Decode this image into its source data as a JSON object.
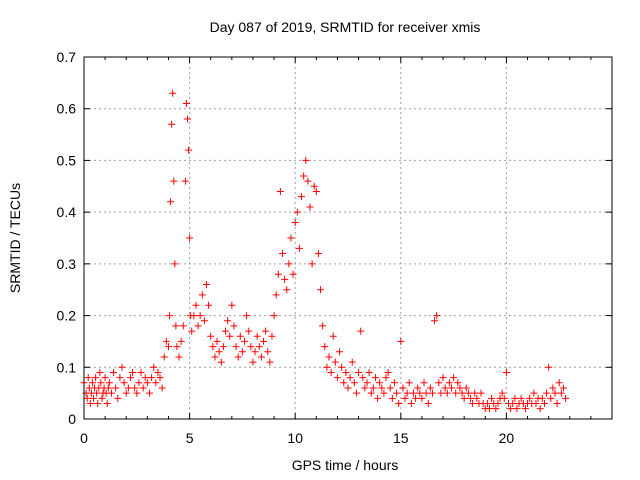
{
  "chart_data": {
    "type": "scatter",
    "title": "Day 087 of 2019, SRMTID for receiver xmis",
    "xlabel": "GPS time / hours",
    "ylabel": "SRMTID / TECUs",
    "xlim": [
      0,
      25
    ],
    "ylim": [
      0,
      0.7
    ],
    "xticks": [
      0,
      5,
      10,
      15,
      20
    ],
    "xtick_labels": [
      "0",
      "5",
      "10",
      "15",
      "20"
    ],
    "yticks": [
      0,
      0.1,
      0.2,
      0.3,
      0.4,
      0.5,
      0.6,
      0.7
    ],
    "ytick_labels": [
      "0",
      "0.1",
      "0.2",
      "0.3",
      "0.4",
      "0.5",
      "0.6",
      "0.7"
    ],
    "grid": true,
    "marker": "+",
    "series_color": "#ff0000",
    "series": [
      {
        "name": "SRMTID",
        "points": [
          [
            0.0,
            0.07
          ],
          [
            0.1,
            0.05
          ],
          [
            0.15,
            0.04
          ],
          [
            0.2,
            0.08
          ],
          [
            0.25,
            0.06
          ],
          [
            0.3,
            0.03
          ],
          [
            0.35,
            0.05
          ],
          [
            0.4,
            0.07
          ],
          [
            0.45,
            0.04
          ],
          [
            0.5,
            0.06
          ],
          [
            0.55,
            0.08
          ],
          [
            0.6,
            0.05
          ],
          [
            0.65,
            0.03
          ],
          [
            0.7,
            0.06
          ],
          [
            0.75,
            0.09
          ],
          [
            0.8,
            0.07
          ],
          [
            0.85,
            0.04
          ],
          [
            0.9,
            0.05
          ],
          [
            0.95,
            0.06
          ],
          [
            1.0,
            0.08
          ],
          [
            1.05,
            0.05
          ],
          [
            1.1,
            0.03
          ],
          [
            1.15,
            0.06
          ],
          [
            1.2,
            0.07
          ],
          [
            1.3,
            0.05
          ],
          [
            1.4,
            0.09
          ],
          [
            1.5,
            0.06
          ],
          [
            1.6,
            0.04
          ],
          [
            1.7,
            0.08
          ],
          [
            1.8,
            0.1
          ],
          [
            1.9,
            0.07
          ],
          [
            2.0,
            0.05
          ],
          [
            2.1,
            0.06
          ],
          [
            2.2,
            0.08
          ],
          [
            2.3,
            0.09
          ],
          [
            2.4,
            0.06
          ],
          [
            2.5,
            0.05
          ],
          [
            2.6,
            0.07
          ],
          [
            2.7,
            0.09
          ],
          [
            2.8,
            0.06
          ],
          [
            2.9,
            0.08
          ],
          [
            3.0,
            0.07
          ],
          [
            3.1,
            0.05
          ],
          [
            3.2,
            0.08
          ],
          [
            3.3,
            0.1
          ],
          [
            3.4,
            0.07
          ],
          [
            3.5,
            0.09
          ],
          [
            3.6,
            0.08
          ],
          [
            3.7,
            0.06
          ],
          [
            3.8,
            0.12
          ],
          [
            3.9,
            0.15
          ],
          [
            4.0,
            0.14
          ],
          [
            4.05,
            0.2
          ],
          [
            4.1,
            0.42
          ],
          [
            4.15,
            0.57
          ],
          [
            4.2,
            0.63
          ],
          [
            4.25,
            0.46
          ],
          [
            4.3,
            0.3
          ],
          [
            4.35,
            0.18
          ],
          [
            4.4,
            0.14
          ],
          [
            4.5,
            0.12
          ],
          [
            4.6,
            0.15
          ],
          [
            4.7,
            0.18
          ],
          [
            4.8,
            0.46
          ],
          [
            4.85,
            0.61
          ],
          [
            4.9,
            0.58
          ],
          [
            4.95,
            0.52
          ],
          [
            5.0,
            0.35
          ],
          [
            5.05,
            0.2
          ],
          [
            5.1,
            0.17
          ],
          [
            5.2,
            0.2
          ],
          [
            5.3,
            0.22
          ],
          [
            5.4,
            0.18
          ],
          [
            5.5,
            0.2
          ],
          [
            5.6,
            0.24
          ],
          [
            5.7,
            0.19
          ],
          [
            5.8,
            0.26
          ],
          [
            5.9,
            0.22
          ],
          [
            6.0,
            0.16
          ],
          [
            6.1,
            0.14
          ],
          [
            6.2,
            0.12
          ],
          [
            6.3,
            0.15
          ],
          [
            6.4,
            0.13
          ],
          [
            6.5,
            0.11
          ],
          [
            6.6,
            0.14
          ],
          [
            6.7,
            0.17
          ],
          [
            6.8,
            0.19
          ],
          [
            6.9,
            0.16
          ],
          [
            7.0,
            0.22
          ],
          [
            7.1,
            0.18
          ],
          [
            7.2,
            0.14
          ],
          [
            7.3,
            0.12
          ],
          [
            7.4,
            0.16
          ],
          [
            7.5,
            0.13
          ],
          [
            7.6,
            0.15
          ],
          [
            7.7,
            0.2
          ],
          [
            7.8,
            0.17
          ],
          [
            7.9,
            0.14
          ],
          [
            8.0,
            0.11
          ],
          [
            8.1,
            0.13
          ],
          [
            8.2,
            0.16
          ],
          [
            8.3,
            0.14
          ],
          [
            8.4,
            0.12
          ],
          [
            8.5,
            0.15
          ],
          [
            8.6,
            0.17
          ],
          [
            8.7,
            0.13
          ],
          [
            8.8,
            0.11
          ],
          [
            8.9,
            0.16
          ],
          [
            9.0,
            0.2
          ],
          [
            9.1,
            0.24
          ],
          [
            9.2,
            0.28
          ],
          [
            9.3,
            0.44
          ],
          [
            9.4,
            0.32
          ],
          [
            9.5,
            0.27
          ],
          [
            9.6,
            0.25
          ],
          [
            9.7,
            0.3
          ],
          [
            9.8,
            0.35
          ],
          [
            9.9,
            0.28
          ],
          [
            10.0,
            0.38
          ],
          [
            10.1,
            0.4
          ],
          [
            10.2,
            0.33
          ],
          [
            10.3,
            0.43
          ],
          [
            10.4,
            0.47
          ],
          [
            10.5,
            0.5
          ],
          [
            10.6,
            0.46
          ],
          [
            10.7,
            0.41
          ],
          [
            10.8,
            0.3
          ],
          [
            10.9,
            0.45
          ],
          [
            11.0,
            0.44
          ],
          [
            11.1,
            0.32
          ],
          [
            11.2,
            0.25
          ],
          [
            11.3,
            0.18
          ],
          [
            11.4,
            0.14
          ],
          [
            11.5,
            0.1
          ],
          [
            11.6,
            0.12
          ],
          [
            11.7,
            0.09
          ],
          [
            11.8,
            0.16
          ],
          [
            11.9,
            0.11
          ],
          [
            12.0,
            0.08
          ],
          [
            12.1,
            0.13
          ],
          [
            12.2,
            0.1
          ],
          [
            12.3,
            0.07
          ],
          [
            12.4,
            0.09
          ],
          [
            12.5,
            0.06
          ],
          [
            12.6,
            0.08
          ],
          [
            12.7,
            0.11
          ],
          [
            12.8,
            0.07
          ],
          [
            12.9,
            0.05
          ],
          [
            13.0,
            0.09
          ],
          [
            13.1,
            0.17
          ],
          [
            13.2,
            0.08
          ],
          [
            13.3,
            0.06
          ],
          [
            13.4,
            0.07
          ],
          [
            13.5,
            0.09
          ],
          [
            13.6,
            0.05
          ],
          [
            13.7,
            0.06
          ],
          [
            13.8,
            0.08
          ],
          [
            13.9,
            0.04
          ],
          [
            14.0,
            0.07
          ],
          [
            14.1,
            0.06
          ],
          [
            14.2,
            0.05
          ],
          [
            14.3,
            0.08
          ],
          [
            14.4,
            0.09
          ],
          [
            14.5,
            0.06
          ],
          [
            14.6,
            0.04
          ],
          [
            14.7,
            0.07
          ],
          [
            14.8,
            0.05
          ],
          [
            14.9,
            0.03
          ],
          [
            15.0,
            0.15
          ],
          [
            15.1,
            0.06
          ],
          [
            15.2,
            0.04
          ],
          [
            15.3,
            0.05
          ],
          [
            15.4,
            0.07
          ],
          [
            15.5,
            0.03
          ],
          [
            15.6,
            0.05
          ],
          [
            15.7,
            0.04
          ],
          [
            15.8,
            0.06
          ],
          [
            15.9,
            0.05
          ],
          [
            16.0,
            0.04
          ],
          [
            16.1,
            0.07
          ],
          [
            16.2,
            0.05
          ],
          [
            16.3,
            0.03
          ],
          [
            16.4,
            0.06
          ],
          [
            16.5,
            0.05
          ],
          [
            16.6,
            0.19
          ],
          [
            16.7,
            0.2
          ],
          [
            16.8,
            0.07
          ],
          [
            16.9,
            0.05
          ],
          [
            17.0,
            0.08
          ],
          [
            17.1,
            0.06
          ],
          [
            17.2,
            0.05
          ],
          [
            17.3,
            0.07
          ],
          [
            17.4,
            0.06
          ],
          [
            17.5,
            0.08
          ],
          [
            17.6,
            0.05
          ],
          [
            17.7,
            0.07
          ],
          [
            17.8,
            0.06
          ],
          [
            17.9,
            0.05
          ],
          [
            18.0,
            0.04
          ],
          [
            18.1,
            0.06
          ],
          [
            18.2,
            0.05
          ],
          [
            18.3,
            0.04
          ],
          [
            18.4,
            0.03
          ],
          [
            18.5,
            0.05
          ],
          [
            18.6,
            0.04
          ],
          [
            18.7,
            0.03
          ],
          [
            18.8,
            0.05
          ],
          [
            18.9,
            0.03
          ],
          [
            19.0,
            0.02
          ],
          [
            19.1,
            0.03
          ],
          [
            19.2,
            0.02
          ],
          [
            19.3,
            0.04
          ],
          [
            19.4,
            0.03
          ],
          [
            19.5,
            0.02
          ],
          [
            19.6,
            0.03
          ],
          [
            19.7,
            0.04
          ],
          [
            19.8,
            0.05
          ],
          [
            19.9,
            0.04
          ],
          [
            20.0,
            0.09
          ],
          [
            20.1,
            0.03
          ],
          [
            20.2,
            0.02
          ],
          [
            20.3,
            0.03
          ],
          [
            20.4,
            0.04
          ],
          [
            20.5,
            0.02
          ],
          [
            20.6,
            0.03
          ],
          [
            20.7,
            0.04
          ],
          [
            20.8,
            0.03
          ],
          [
            20.9,
            0.02
          ],
          [
            21.0,
            0.03
          ],
          [
            21.1,
            0.04
          ],
          [
            21.2,
            0.03
          ],
          [
            21.3,
            0.05
          ],
          [
            21.4,
            0.03
          ],
          [
            21.5,
            0.04
          ],
          [
            21.6,
            0.02
          ],
          [
            21.7,
            0.04
          ],
          [
            21.8,
            0.03
          ],
          [
            21.9,
            0.05
          ],
          [
            22.0,
            0.1
          ],
          [
            22.1,
            0.04
          ],
          [
            22.2,
            0.06
          ],
          [
            22.3,
            0.05
          ],
          [
            22.4,
            0.03
          ],
          [
            22.5,
            0.07
          ],
          [
            22.6,
            0.05
          ],
          [
            22.7,
            0.06
          ],
          [
            22.8,
            0.04
          ]
        ]
      }
    ]
  }
}
